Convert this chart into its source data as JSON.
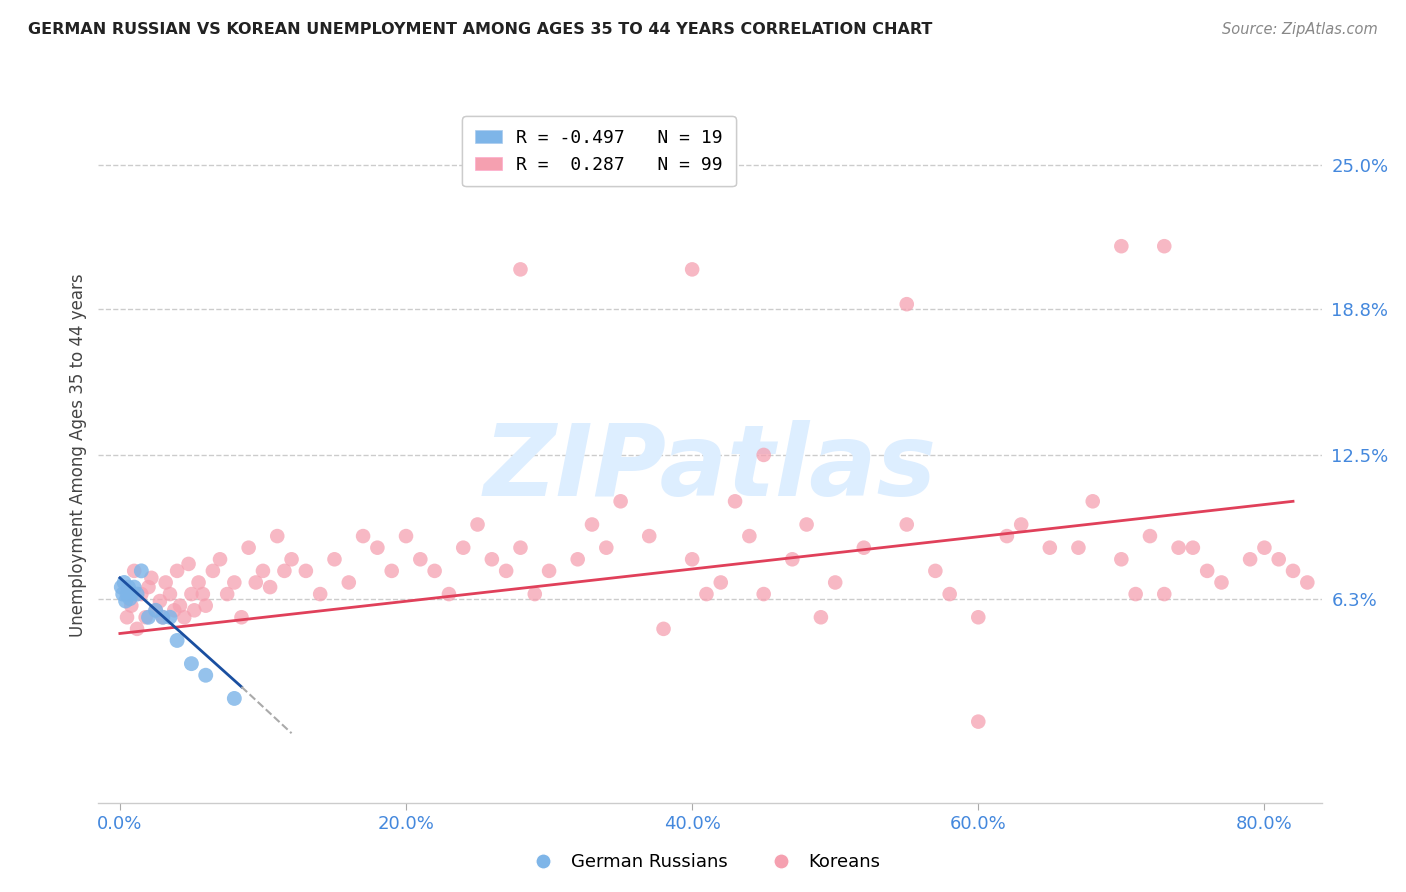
{
  "title": "GERMAN RUSSIAN VS KOREAN UNEMPLOYMENT AMONG AGES 35 TO 44 YEARS CORRELATION CHART",
  "source": "Source: ZipAtlas.com",
  "xlabel_ticks": [
    "0.0%",
    "20.0%",
    "40.0%",
    "60.0%",
    "80.0%"
  ],
  "xlabel_vals": [
    0.0,
    20.0,
    40.0,
    60.0,
    80.0
  ],
  "ylabel_labels": [
    "6.3%",
    "12.5%",
    "18.8%",
    "25.0%"
  ],
  "ylabel_vals": [
    6.3,
    12.5,
    18.8,
    25.0
  ],
  "xlim": [
    -1.5,
    84.0
  ],
  "ylim": [
    -2.5,
    27.5
  ],
  "blue_color": "#7eb5e8",
  "pink_color": "#f5a0b0",
  "blue_line_color": "#1a4fa0",
  "pink_line_color": "#e0405a",
  "grid_color": "#cccccc",
  "axis_tick_color": "#4488dd",
  "title_color": "#222222",
  "source_color": "#888888",
  "watermark_text": "ZIPatlas",
  "watermark_color": "#ddeeff",
  "ylabel": "Unemployment Among Ages 35 to 44 years",
  "legend_label1": "R = -0.497   N = 19",
  "legend_label2": "R =  0.287   N = 99",
  "korean_x": [
    0.5,
    0.8,
    1.0,
    1.2,
    1.5,
    1.8,
    2.0,
    2.2,
    2.5,
    2.8,
    3.0,
    3.2,
    3.5,
    3.8,
    4.0,
    4.2,
    4.5,
    4.8,
    5.0,
    5.2,
    5.5,
    5.8,
    6.0,
    6.5,
    7.0,
    7.5,
    8.0,
    8.5,
    9.0,
    9.5,
    10.0,
    10.5,
    11.0,
    11.5,
    12.0,
    13.0,
    14.0,
    15.0,
    16.0,
    17.0,
    18.0,
    19.0,
    20.0,
    21.0,
    22.0,
    23.0,
    24.0,
    25.0,
    26.0,
    27.0,
    28.0,
    29.0,
    30.0,
    32.0,
    33.0,
    34.0,
    35.0,
    37.0,
    38.0,
    40.0,
    41.0,
    42.0,
    43.0,
    44.0,
    45.0,
    47.0,
    48.0,
    49.0,
    50.0,
    52.0,
    55.0,
    57.0,
    58.0,
    60.0,
    62.0,
    63.0,
    65.0,
    67.0,
    68.0,
    70.0,
    71.0,
    72.0,
    73.0,
    74.0,
    75.0,
    76.0,
    77.0,
    79.0,
    80.0,
    81.0,
    82.0,
    83.0,
    40.0,
    55.0,
    70.0,
    73.0,
    28.0,
    45.0,
    60.0
  ],
  "korean_y": [
    5.5,
    6.0,
    7.5,
    5.0,
    6.5,
    5.5,
    6.8,
    7.2,
    5.8,
    6.2,
    5.5,
    7.0,
    6.5,
    5.8,
    7.5,
    6.0,
    5.5,
    7.8,
    6.5,
    5.8,
    7.0,
    6.5,
    6.0,
    7.5,
    8.0,
    6.5,
    7.0,
    5.5,
    8.5,
    7.0,
    7.5,
    6.8,
    9.0,
    7.5,
    8.0,
    7.5,
    6.5,
    8.0,
    7.0,
    9.0,
    8.5,
    7.5,
    9.0,
    8.0,
    7.5,
    6.5,
    8.5,
    9.5,
    8.0,
    7.5,
    8.5,
    6.5,
    7.5,
    8.0,
    9.5,
    8.5,
    10.5,
    9.0,
    5.0,
    8.0,
    6.5,
    7.0,
    10.5,
    9.0,
    6.5,
    8.0,
    9.5,
    5.5,
    7.0,
    8.5,
    9.5,
    7.5,
    6.5,
    5.5,
    9.0,
    9.5,
    8.5,
    8.5,
    10.5,
    8.0,
    6.5,
    9.0,
    6.5,
    8.5,
    8.5,
    7.5,
    7.0,
    8.0,
    8.5,
    8.0,
    7.5,
    7.0,
    20.5,
    19.0,
    21.5,
    21.5,
    20.5,
    12.5,
    1.0
  ],
  "german_russian_x": [
    0.1,
    0.2,
    0.3,
    0.4,
    0.5,
    0.6,
    0.7,
    0.8,
    1.0,
    1.2,
    1.5,
    2.0,
    2.5,
    3.0,
    3.5,
    4.0,
    5.0,
    6.0,
    8.0
  ],
  "german_russian_y": [
    6.8,
    6.5,
    7.0,
    6.2,
    6.5,
    6.8,
    6.3,
    6.5,
    6.8,
    6.5,
    7.5,
    5.5,
    5.8,
    5.5,
    5.5,
    4.5,
    3.5,
    3.0,
    2.0
  ],
  "pink_trend_x0": 0.0,
  "pink_trend_y0": 4.8,
  "pink_trend_x1": 82.0,
  "pink_trend_y1": 10.5,
  "blue_trend_x0": 0.0,
  "blue_trend_y0": 7.2,
  "blue_trend_x1": 8.5,
  "blue_trend_y1": 2.5,
  "blue_dash_x0": 8.5,
  "blue_dash_y0": 2.5,
  "blue_dash_x1": 12.0,
  "blue_dash_y1": 0.5
}
